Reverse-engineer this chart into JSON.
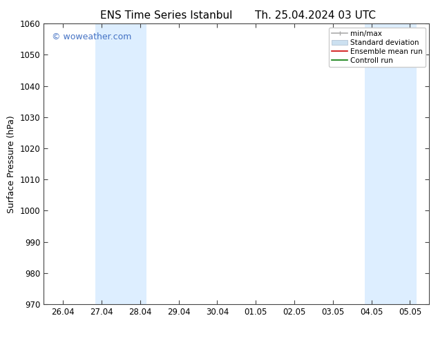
{
  "title_left": "ENS Time Series Istanbul",
  "title_right": "Th. 25.04.2024 03 UTC",
  "ylabel": "Surface Pressure (hPa)",
  "ylim": [
    970,
    1060
  ],
  "yticks": [
    970,
    980,
    990,
    1000,
    1010,
    1020,
    1030,
    1040,
    1050,
    1060
  ],
  "xtick_labels": [
    "26.04",
    "27.04",
    "28.04",
    "29.04",
    "30.04",
    "01.05",
    "02.05",
    "03.05",
    "04.05",
    "05.05"
  ],
  "xtick_positions": [
    0,
    1,
    2,
    3,
    4,
    5,
    6,
    7,
    8,
    9
  ],
  "xlim": [
    -0.5,
    9.5
  ],
  "shaded_regions": [
    {
      "xmin": 0.83,
      "xmax": 1.5,
      "color": "#ddeeff"
    },
    {
      "xmin": 1.5,
      "xmax": 2.17,
      "color": "#ddeeff"
    },
    {
      "xmin": 7.83,
      "xmax": 8.5,
      "color": "#ddeeff"
    },
    {
      "xmin": 8.5,
      "xmax": 9.17,
      "color": "#ddeeff"
    }
  ],
  "watermark": "© woweather.com",
  "watermark_color": "#4472c4",
  "bg_color": "#ffffff",
  "tick_color": "#444444",
  "spine_color": "#444444",
  "title_fontsize": 11,
  "ylabel_fontsize": 9,
  "tick_fontsize": 8.5,
  "legend_fontsize": 7.5,
  "font_family": "DejaVu Sans",
  "minmax_color": "#aaaaaa",
  "std_facecolor": "#cce0f0",
  "std_edgecolor": "#aabbcc",
  "ensemble_color": "#cc0000",
  "control_color": "#007700"
}
